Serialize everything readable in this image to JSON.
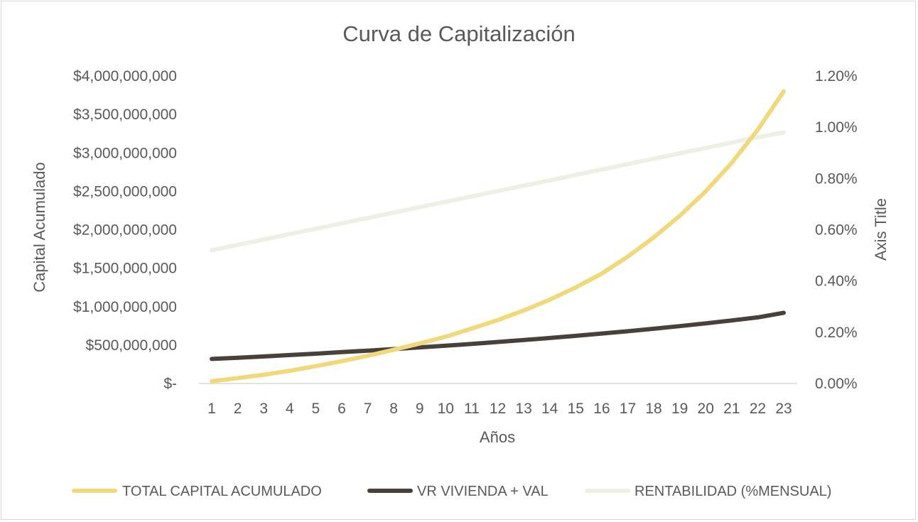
{
  "chart_data": {
    "type": "line",
    "title": "Curva de Capitalización",
    "xlabel": "Años",
    "ylabel": "Capital Acumulado",
    "y2label": "Axis Title",
    "categories": [
      "1",
      "2",
      "3",
      "4",
      "5",
      "6",
      "7",
      "8",
      "9",
      "10",
      "11",
      "12",
      "13",
      "14",
      "15",
      "16",
      "17",
      "18",
      "19",
      "20",
      "21",
      "22",
      "23"
    ],
    "ylim": [
      0,
      4000000000
    ],
    "y2lim": [
      0,
      0.012
    ],
    "yticks": [
      "$4,000,000,000",
      "$3,500,000,000",
      "$3,000,000,000",
      "$2,500,000,000",
      "$2,000,000,000",
      "$1,500,000,000",
      "$1,000,000,000",
      "$500,000,000",
      "$-"
    ],
    "y2ticks": [
      "1.20%",
      "1.00%",
      "0.80%",
      "0.60%",
      "0.40%",
      "0.20%",
      "0.00%"
    ],
    "grid": false,
    "legend_position": "bottom",
    "series": [
      {
        "name": "TOTAL CAPITAL ACUMULADO",
        "axis": "left",
        "color": "#f0d97a",
        "values": [
          30000000,
          70000000,
          115000000,
          165000000,
          225000000,
          290000000,
          360000000,
          440000000,
          520000000,
          610000000,
          715000000,
          825000000,
          950000000,
          1090000000,
          1250000000,
          1430000000,
          1650000000,
          1900000000,
          2180000000,
          2500000000,
          2870000000,
          3300000000,
          3800000000
        ]
      },
      {
        "name": "VR VIVIENDA + VAL",
        "axis": "left",
        "color": "#4a403b",
        "values": [
          320000000,
          335000000,
          352000000,
          370000000,
          388000000,
          408000000,
          428000000,
          448000000,
          470000000,
          492000000,
          515000000,
          540000000,
          565000000,
          592000000,
          620000000,
          650000000,
          680000000,
          712000000,
          746000000,
          782000000,
          820000000,
          860000000,
          920000000
        ]
      },
      {
        "name": "RENTABILIDAD (%MENSUAL)",
        "axis": "right",
        "color": "#efefe4",
        "values": [
          0.0052,
          0.00541,
          0.00562,
          0.00583,
          0.00604,
          0.00625,
          0.00646,
          0.00667,
          0.00688,
          0.00709,
          0.0073,
          0.00751,
          0.00772,
          0.00793,
          0.00814,
          0.00835,
          0.00856,
          0.00877,
          0.00898,
          0.00919,
          0.0094,
          0.00961,
          0.0098
        ]
      }
    ]
  }
}
